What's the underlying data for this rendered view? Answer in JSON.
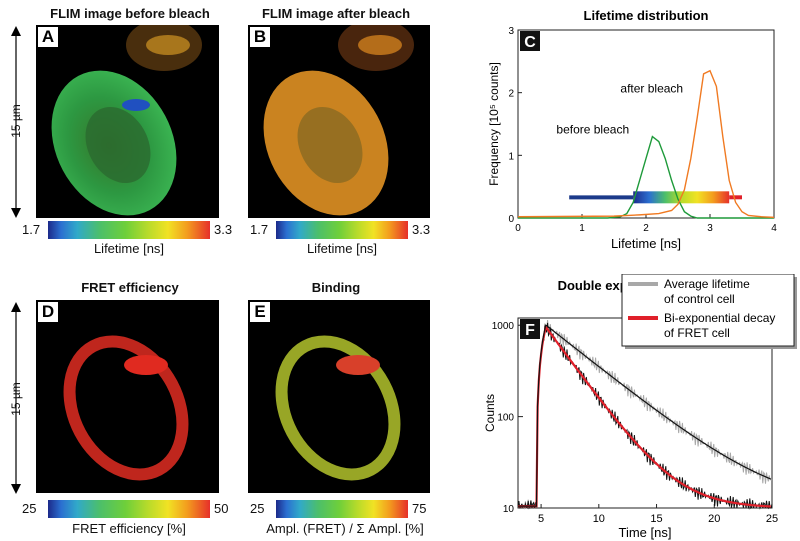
{
  "panels": {
    "A": {
      "letter": "A",
      "title": "FLIM image before bleach",
      "cb_min": "1.7",
      "cb_max": "3.3",
      "cb_label": "Lifetime [ns]"
    },
    "B": {
      "letter": "B",
      "title": "FLIM image after bleach",
      "cb_min": "1.7",
      "cb_max": "3.3",
      "cb_label": "Lifetime [ns]"
    },
    "D": {
      "letter": "D",
      "title": "FRET efficiency",
      "cb_min": "25",
      "cb_max": "50",
      "cb_label": "FRET efficiency [%]"
    },
    "E": {
      "letter": "E",
      "title": "Binding",
      "cb_min": "25",
      "cb_max": "75",
      "cb_label": "Ampl. (FRET) / Σ Ampl. [%]"
    }
  },
  "scale_bar": {
    "label": "15 µm"
  },
  "colors": {
    "green": "#1e9a3a",
    "orange": "#f07a22",
    "red": "#e0202a",
    "gray": "#a8a8a8",
    "black": "#111111"
  },
  "chart_data": [
    {
      "type": "line",
      "letter": "C",
      "title": "Lifetime distribution",
      "xlabel": "Lifetime [ns]",
      "ylabel": "Frequency [10⁵ counts]",
      "xlim": [
        0,
        4
      ],
      "ylim": [
        0,
        3
      ],
      "xticks": [
        "0",
        "1",
        "2",
        "3",
        "4"
      ],
      "yticks": [
        "0",
        "1",
        "2",
        "3"
      ],
      "annotations": [
        "before bleach",
        "after bleach"
      ],
      "series": [
        {
          "annotation": "before bleach",
          "color": "#1e9a3a",
          "x": [
            0,
            1.4,
            1.6,
            1.7,
            1.8,
            1.9,
            2.0,
            2.1,
            2.2,
            2.3,
            2.4,
            2.5,
            2.6,
            2.7,
            2.8,
            4.0
          ],
          "y": [
            0,
            0,
            0.02,
            0.07,
            0.25,
            0.6,
            0.95,
            1.3,
            1.22,
            0.95,
            0.6,
            0.3,
            0.1,
            0.03,
            0,
            0
          ]
        },
        {
          "annotation": "after bleach",
          "color": "#f07a22",
          "x": [
            0,
            1.5,
            1.9,
            2.2,
            2.4,
            2.5,
            2.6,
            2.7,
            2.8,
            2.9,
            3.0,
            3.1,
            3.2,
            3.3,
            3.4,
            3.5,
            3.6,
            3.8,
            4.0
          ],
          "y": [
            0.02,
            0.03,
            0.05,
            0.07,
            0.12,
            0.22,
            0.45,
            0.95,
            1.6,
            2.3,
            2.35,
            2.1,
            1.3,
            0.6,
            0.25,
            0.1,
            0.04,
            0.02,
            0.01
          ]
        }
      ],
      "color_bar": {
        "from": 1.8,
        "to": 3.3,
        "colors": [
          "#1c2a8a",
          "#2b6fd0",
          "#4cbf6a",
          "#b9db2a",
          "#f1e224",
          "#f39c1e",
          "#e6302a"
        ]
      },
      "range_bar": {
        "from": 0.8,
        "to": 3.5,
        "y": 0.33,
        "left_color": "#1c3a8a",
        "right_color": "#e0202a"
      }
    },
    {
      "type": "line",
      "letter": "F",
      "title": "Double exponential analysis",
      "xlabel": "Time [ns]",
      "ylabel": "Counts",
      "xlim": [
        3,
        25
      ],
      "ylim": [
        10,
        1200
      ],
      "yscale": "log",
      "xticks": [
        "5",
        "10",
        "15",
        "20",
        "25"
      ],
      "yticks": [
        "10",
        "100",
        "1000"
      ],
      "legend": {
        "position": "top-right",
        "entries": [
          {
            "label": "Average lifetime",
            "label2": "of control cell",
            "color": "#a8a8a8"
          },
          {
            "label": "Bi-exponential decay",
            "label2": "of FRET cell",
            "color": "#e0202a"
          }
        ]
      },
      "series": [
        {
          "name": "Average lifetime of control cell",
          "color": "#a8a8a8",
          "tau": 4.3,
          "peak": 1000
        },
        {
          "name": "Bi-exponential decay of FRET cell",
          "color": "#e0202a",
          "tau": 2.5,
          "peak": 950
        }
      ]
    }
  ]
}
